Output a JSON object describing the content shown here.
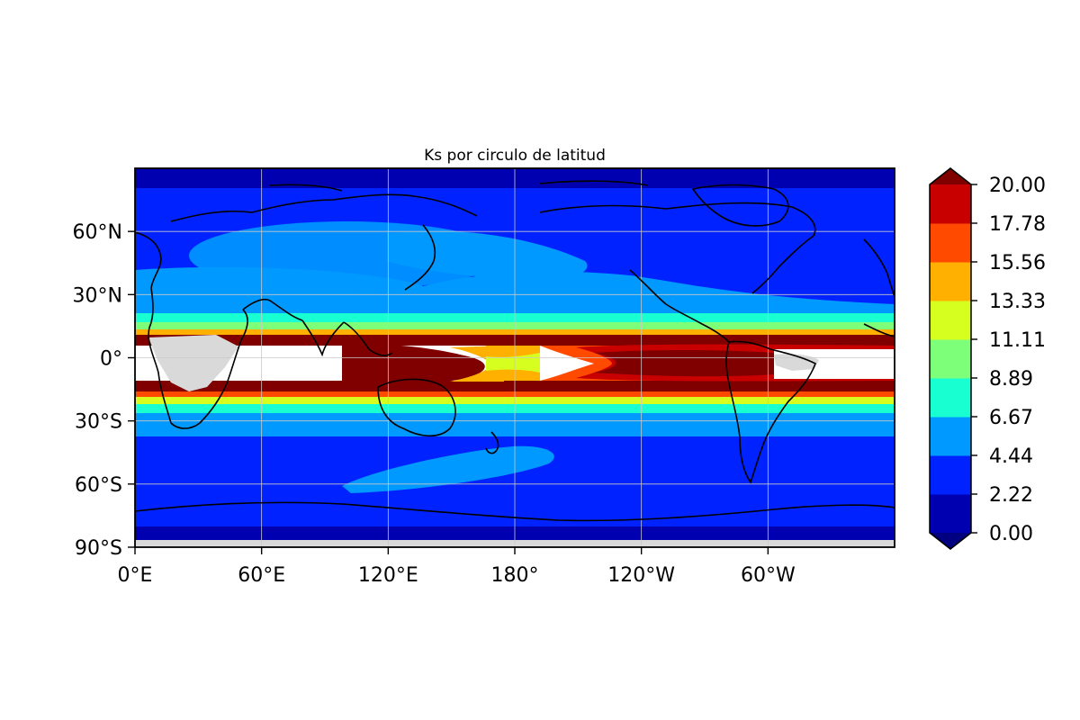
{
  "title": "Ks por circulo de latitud",
  "colors": {
    "land": "#d9d9d9",
    "coast": "#000000",
    "grid": "#c8c8c8",
    "background": "#ffffff"
  },
  "map": {
    "projection": "PlateCarree",
    "lon_range": [
      0,
      360
    ],
    "lat_range": [
      -90,
      90
    ],
    "x_ticks": [
      {
        "lon": 0,
        "label": "0°E"
      },
      {
        "lon": 60,
        "label": "60°E"
      },
      {
        "lon": 120,
        "label": "120°E"
      },
      {
        "lon": 180,
        "label": "180°"
      },
      {
        "lon": 240,
        "label": "120°W"
      },
      {
        "lon": 300,
        "label": "60°W"
      }
    ],
    "y_ticks": [
      {
        "lat": 60,
        "label": "60°N"
      },
      {
        "lat": 30,
        "label": "30°N"
      },
      {
        "lat": 0,
        "label": "0°"
      },
      {
        "lat": -30,
        "label": "30°S"
      },
      {
        "lat": -60,
        "label": "60°S"
      },
      {
        "lat": -90,
        "label": "90°S"
      }
    ]
  },
  "colorbar": {
    "extend": "both",
    "levels": [
      "0.00",
      "2.22",
      "4.44",
      "6.67",
      "8.89",
      "11.11",
      "13.33",
      "15.56",
      "17.78",
      "20.00"
    ],
    "colors": [
      "#0000b0",
      "#0022ff",
      "#0099ff",
      "#18ffd2",
      "#7dff7a",
      "#d6ff1f",
      "#ffb000",
      "#ff4a00",
      "#c80000"
    ],
    "under_color": "#000080",
    "over_color": "#800000"
  },
  "chart_data": {
    "type": "heatmap",
    "title": "Ks por circulo de latitud",
    "variable": "Ks",
    "x_range_lon": [
      0,
      360
    ],
    "y_range_lat": [
      -90,
      90
    ],
    "vmin": 0.0,
    "vmax": 20.0,
    "legend_placement": "right",
    "grid": true,
    "zonal_bands": [
      {
        "lat_from": 90,
        "lat_to": 83,
        "level_bin": "0.00-2.22"
      },
      {
        "lat_from": 83,
        "lat_to": 20,
        "level_bin": "2.22-4.44"
      },
      {
        "lat_from": 42,
        "lat_to": 27,
        "level_bin": "4.44-6.67"
      },
      {
        "lat_from": 20,
        "lat_to": 16,
        "level_bin": "6.67-8.89"
      },
      {
        "lat_from": 16,
        "lat_to": 13,
        "level_bin": "8.89-11.11"
      },
      {
        "lat_from": 10,
        "lat_to": 7,
        "level_bin": ">20.00"
      },
      {
        "lat_from": 7,
        "lat_to": -10,
        "level_bin": "undefined"
      },
      {
        "lat_from": -10,
        "lat_to": -13,
        "level_bin": ">20.00"
      },
      {
        "lat_from": -25,
        "lat_to": -33,
        "level_bin": "4.44-6.67"
      },
      {
        "lat_from": -33,
        "lat_to": -80,
        "level_bin": "2.22-4.44"
      },
      {
        "lat_from": -80,
        "lat_to": -90,
        "level_bin": "0.00-2.22"
      }
    ]
  }
}
